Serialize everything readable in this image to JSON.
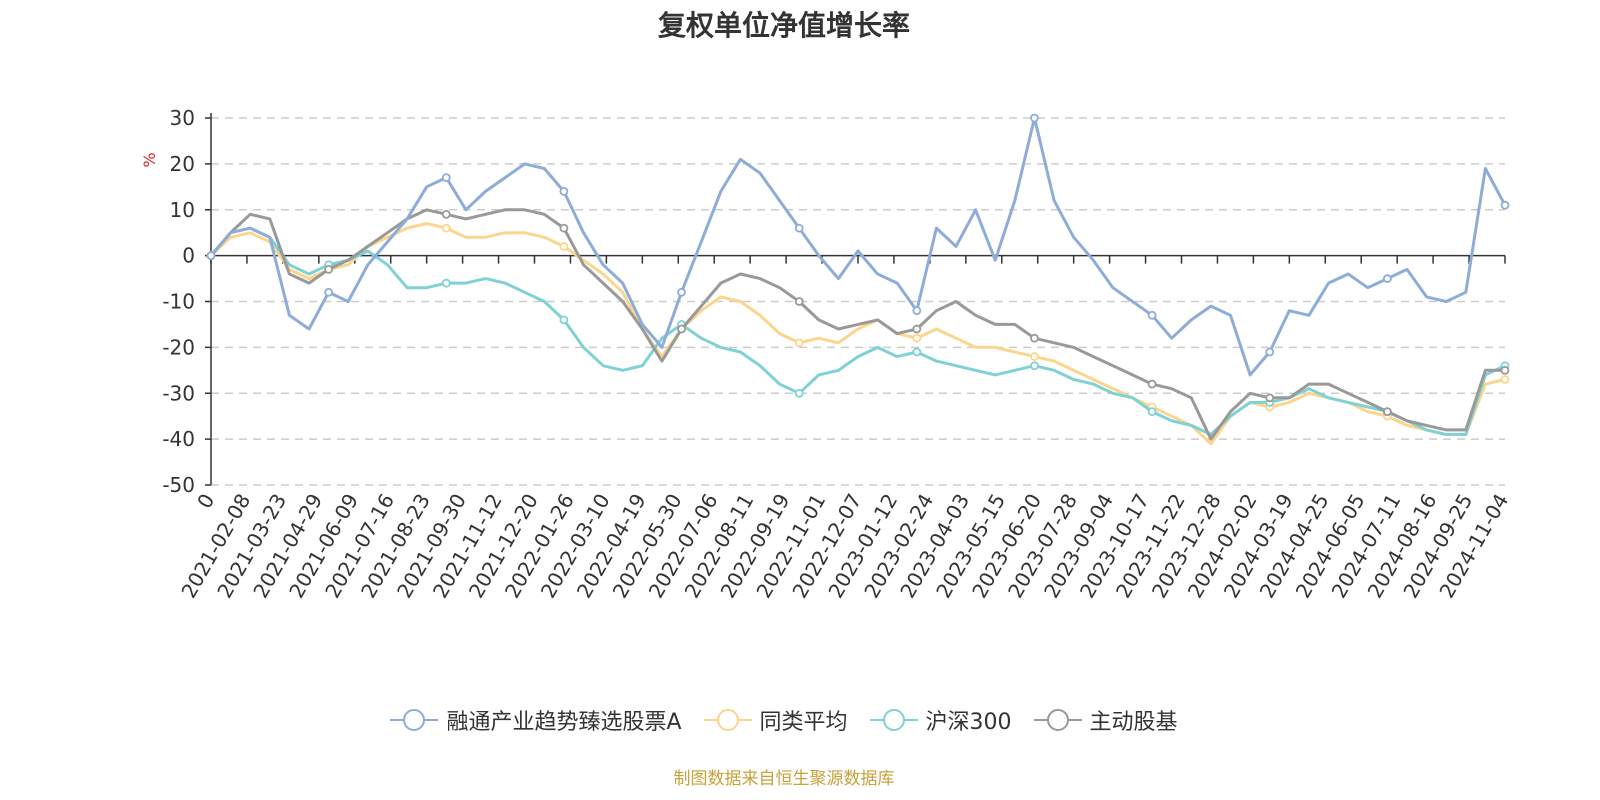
{
  "chart_data": {
    "type": "line",
    "title": "复权单位净值增长率",
    "ylabel": "%",
    "xlabel": "",
    "ylim": [
      -50,
      30
    ],
    "y_ticks": [
      30,
      20,
      10,
      0,
      -10,
      -20,
      -30,
      -40,
      -50
    ],
    "x_tick_labels": [
      "0",
      "2021-02-08",
      "2021-03-23",
      "2021-04-29",
      "2021-06-09",
      "2021-07-16",
      "2021-08-23",
      "2021-09-30",
      "2021-11-12",
      "2021-12-20",
      "2022-01-26",
      "2022-03-10",
      "2022-04-19",
      "2022-05-30",
      "2022-07-06",
      "2022-08-11",
      "2022-09-19",
      "2022-11-01",
      "2022-12-07",
      "2023-01-12",
      "2023-02-24",
      "2023-04-03",
      "2023-05-15",
      "2023-06-20",
      "2023-07-28",
      "2023-09-04",
      "2023-10-17",
      "2023-11-22",
      "2023-12-28",
      "2024-02-02",
      "2024-03-19",
      "2024-04-25",
      "2024-06-05",
      "2024-07-11",
      "2024-08-16",
      "2024-09-25",
      "2024-11-04"
    ],
    "grid": true,
    "legend_position": "bottom",
    "series": [
      {
        "name": "融通产业趋势臻选股票A",
        "color": "#8eacd8",
        "values": [
          0,
          5,
          6,
          4,
          -13,
          -16,
          -8,
          -10,
          -2,
          3,
          8,
          15,
          17,
          10,
          14,
          17,
          20,
          19,
          14,
          5,
          -2,
          -6,
          -15,
          -20,
          -8,
          3,
          14,
          21,
          18,
          12,
          6,
          0,
          -5,
          1,
          -4,
          -6,
          -12,
          6,
          2,
          10,
          -1,
          12,
          30,
          12,
          4,
          -1,
          -7,
          -10,
          -13,
          -18,
          -14,
          -11,
          -13,
          -26,
          -21,
          -12,
          -13,
          -6,
          -4,
          -7,
          -5,
          -3,
          -9,
          -10,
          -8,
          19,
          11
        ]
      },
      {
        "name": "同类平均",
        "color": "#fcd58c",
        "values": [
          0,
          4,
          5,
          3,
          -3,
          -5,
          -3,
          -2,
          2,
          4,
          6,
          7,
          6,
          4,
          4,
          5,
          5,
          4,
          2,
          -1,
          -4,
          -8,
          -16,
          -22,
          -16,
          -12,
          -9,
          -10,
          -13,
          -17,
          -19,
          -18,
          -19,
          -16,
          -14,
          -17,
          -18,
          -16,
          -18,
          -20,
          -20,
          -21,
          -22,
          -23,
          -25,
          -27,
          -29,
          -31,
          -33,
          -35,
          -37,
          -41,
          -35,
          -32,
          -33,
          -32,
          -30,
          -31,
          -32,
          -34,
          -35,
          -37,
          -38,
          -39,
          -39,
          -28,
          -27
        ]
      },
      {
        "name": "沪深300",
        "color": "#7fd1d4",
        "values": [
          0,
          5,
          6,
          4,
          -2,
          -4,
          -2,
          -1,
          1,
          -2,
          -7,
          -7,
          -6,
          -6,
          -5,
          -6,
          -8,
          -10,
          -14,
          -20,
          -24,
          -25,
          -24,
          -18,
          -15,
          -18,
          -20,
          -21,
          -24,
          -28,
          -30,
          -26,
          -25,
          -22,
          -20,
          -22,
          -21,
          -23,
          -24,
          -25,
          -26,
          -25,
          -24,
          -25,
          -27,
          -28,
          -30,
          -31,
          -34,
          -36,
          -37,
          -39,
          -35,
          -32,
          -32,
          -31,
          -29,
          -31,
          -32,
          -33,
          -34,
          -36,
          -38,
          -39,
          -39,
          -26,
          -24
        ]
      },
      {
        "name": "主动股基",
        "color": "#999999",
        "values": [
          0,
          5,
          9,
          8,
          -4,
          -6,
          -3,
          -1,
          2,
          5,
          8,
          10,
          9,
          8,
          9,
          10,
          10,
          9,
          6,
          -2,
          -6,
          -10,
          -16,
          -23,
          -16,
          -11,
          -6,
          -4,
          -5,
          -7,
          -10,
          -14,
          -16,
          -15,
          -14,
          -17,
          -16,
          -12,
          -10,
          -13,
          -15,
          -15,
          -18,
          -19,
          -20,
          -22,
          -24,
          -26,
          -28,
          -29,
          -31,
          -40,
          -34,
          -30,
          -31,
          -31,
          -28,
          -28,
          -30,
          -32,
          -34,
          -36,
          -37,
          -38,
          -38,
          -25,
          -25
        ]
      }
    ]
  },
  "footer": {
    "source": "制图数据来自恒生聚源数据库"
  }
}
